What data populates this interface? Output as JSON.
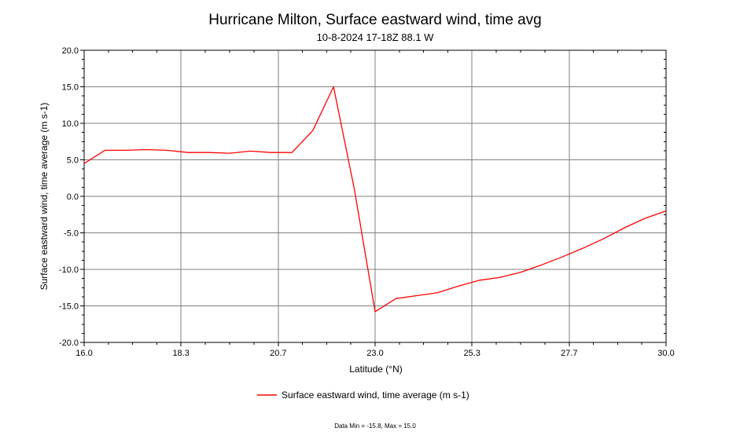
{
  "chart_data": {
    "type": "line",
    "title": "Hurricane Milton, Surface eastward wind, time avg",
    "subtitle": "10-8-2024 17-18Z 88.1 W",
    "xlabel": "Latitude (°N)",
    "ylabel": "Surface eastward wind, time average (m s-1)",
    "xlim": [
      16.0,
      30.0
    ],
    "ylim": [
      -20.0,
      20.0
    ],
    "x_ticks": [
      {
        "value": 16.0,
        "label": "16.0"
      },
      {
        "value": 18.33,
        "label": "18.3"
      },
      {
        "value": 20.67,
        "label": "20.7"
      },
      {
        "value": 23.0,
        "label": "23.0"
      },
      {
        "value": 25.33,
        "label": "25.3"
      },
      {
        "value": 27.67,
        "label": "27.7"
      },
      {
        "value": 30.0,
        "label": "30.0"
      }
    ],
    "y_ticks": [
      {
        "value": 20,
        "label": "20.0"
      },
      {
        "value": 15,
        "label": "15.0"
      },
      {
        "value": 10,
        "label": "10.0"
      },
      {
        "value": 5,
        "label": "5.0"
      },
      {
        "value": 0,
        "label": "0.0"
      },
      {
        "value": -5,
        "label": "-5.0"
      },
      {
        "value": -10,
        "label": "-10.0"
      },
      {
        "value": -15,
        "label": "-15.0"
      },
      {
        "value": -20,
        "label": "-20.0"
      }
    ],
    "grid": true,
    "legend_position": "bottom-center",
    "series": [
      {
        "name": "Surface eastward wind, time average (m s-1)",
        "color": "#ff0000",
        "x": [
          16.0,
          16.5,
          17.0,
          17.5,
          18.0,
          18.5,
          19.0,
          19.5,
          20.0,
          20.5,
          21.0,
          21.5,
          22.0,
          22.5,
          23.0,
          23.5,
          24.0,
          24.5,
          25.0,
          25.5,
          26.0,
          26.5,
          27.0,
          27.5,
          28.0,
          28.5,
          29.0,
          29.5,
          30.0
        ],
        "y": [
          4.5,
          6.3,
          6.3,
          6.4,
          6.3,
          6.0,
          6.0,
          5.9,
          6.2,
          6.0,
          6.0,
          9.0,
          15.0,
          1.0,
          -15.8,
          -14.0,
          -13.6,
          -13.2,
          -12.3,
          -11.5,
          -11.1,
          -10.4,
          -9.4,
          -8.3,
          -7.1,
          -5.8,
          -4.3,
          -3.0,
          -2.0
        ]
      }
    ],
    "footnote": "Data Min = -15.8, Max = 15.0"
  }
}
